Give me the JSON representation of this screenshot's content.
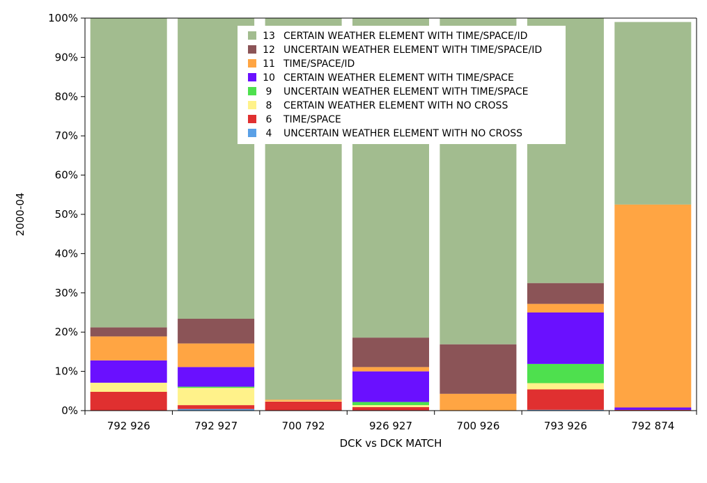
{
  "chart_data": {
    "type": "bar",
    "stacked": true,
    "percent": true,
    "title": "",
    "xlabel": "DCK vs DCK MATCH",
    "ylabel": "2000-04",
    "ylim": [
      0,
      100
    ],
    "y_tick_values": [
      0,
      10,
      20,
      30,
      40,
      50,
      60,
      70,
      80,
      90,
      100
    ],
    "y_tick_labels": [
      "0%",
      "10%",
      "20%",
      "30%",
      "40%",
      "50%",
      "60%",
      "70%",
      "80%",
      "90%",
      "100%"
    ],
    "grid": false,
    "legend_position": "top",
    "categories": [
      "792 926",
      "792 927",
      "700 792",
      "926 927",
      "700 926",
      "793 926",
      "792 874"
    ],
    "series": [
      {
        "code": "4",
        "name": "UNCERTAIN WEATHER ELEMENT WITH NO CROSS",
        "color": "#5aa0e6",
        "values": [
          0.0,
          0.4,
          0.0,
          0.0,
          0.0,
          0.2,
          0.0
        ]
      },
      {
        "code": "6",
        "name": "TIME/SPACE",
        "color": "#e03030",
        "values": [
          4.8,
          1.0,
          2.3,
          0.9,
          0.0,
          5.2,
          0.2
        ]
      },
      {
        "code": "8",
        "name": "CERTAIN WEATHER ELEMENT WITH NO CROSS",
        "color": "#fff28a",
        "values": [
          2.3,
          4.4,
          0.2,
          0.5,
          0.0,
          1.6,
          0.0
        ]
      },
      {
        "code": "9",
        "name": "UNCERTAIN WEATHER ELEMENT WITH TIME/SPACE",
        "color": "#4ee04e",
        "values": [
          0.0,
          0.3,
          0.0,
          0.8,
          0.0,
          4.9,
          0.0
        ]
      },
      {
        "code": "10",
        "name": "CERTAIN WEATHER ELEMENT WITH TIME/SPACE",
        "color": "#6a10ff",
        "values": [
          5.7,
          5.0,
          0.0,
          7.8,
          0.0,
          13.1,
          0.6
        ]
      },
      {
        "code": "11",
        "name": "TIME/SPACE/ID",
        "color": "#ffa543",
        "values": [
          6.1,
          6.0,
          0.3,
          1.1,
          4.3,
          2.2,
          51.7
        ]
      },
      {
        "code": "12",
        "name": "UNCERTAIN WEATHER ELEMENT WITH TIME/SPACE/ID",
        "color": "#8b5457",
        "values": [
          2.3,
          6.3,
          0.0,
          7.5,
          12.6,
          5.3,
          0.0
        ]
      },
      {
        "code": "13",
        "name": "CERTAIN WEATHER ELEMENT WITH TIME/SPACE/ID",
        "color": "#a2bc8f",
        "values": [
          78.8,
          76.6,
          97.2,
          81.4,
          83.1,
          67.5,
          46.5
        ]
      }
    ]
  }
}
